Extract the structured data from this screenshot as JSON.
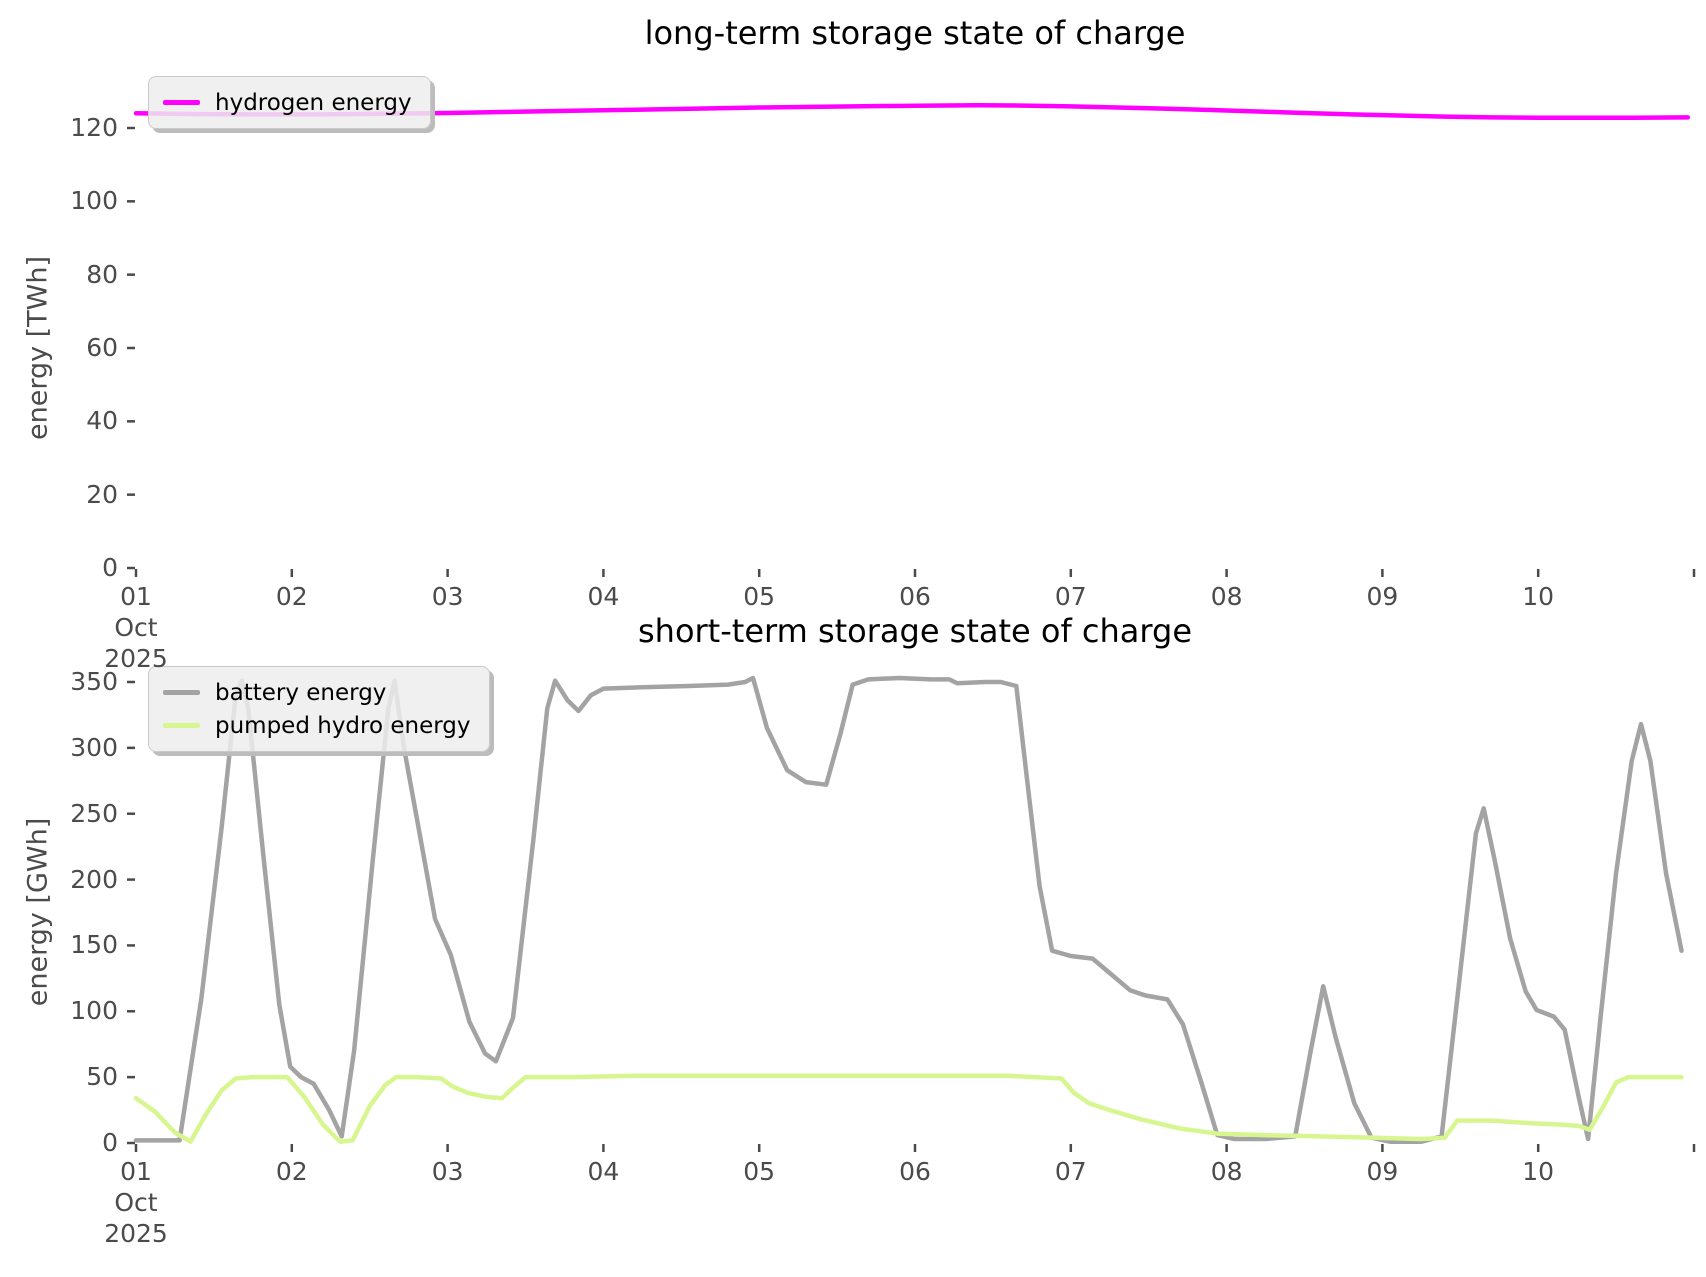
{
  "figure": {
    "background": "#ffffff",
    "tick_color": "#4b4b4b",
    "title_color": "#000000"
  },
  "x_axis": {
    "unit": "day of October 2025",
    "tick_days": [
      1,
      2,
      3,
      4,
      5,
      6,
      7,
      8,
      9,
      10,
      11
    ],
    "tick_labels": [
      "01",
      "02",
      "03",
      "04",
      "05",
      "06",
      "07",
      "08",
      "09",
      "10",
      ""
    ],
    "first_tick_sublabels": [
      "Oct",
      "2025"
    ]
  },
  "chart_data": [
    {
      "type": "line",
      "title": "long-term storage state of charge",
      "ylabel": "energy [TWh]",
      "xlabel": "",
      "grid": false,
      "legend_position": "upper left",
      "ylim": [
        0,
        133
      ],
      "yticks": [
        0,
        20,
        40,
        60,
        80,
        100,
        120
      ],
      "x_range_days": [
        1,
        11
      ],
      "series": [
        {
          "name": "hydrogen energy",
          "color": "#ff00ff",
          "x": [
            1.0,
            1.4,
            1.8,
            2.2,
            2.6,
            3.0,
            3.4,
            3.8,
            4.2,
            4.6,
            5.0,
            5.4,
            5.8,
            6.1,
            6.4,
            6.7,
            7.0,
            7.3,
            7.6,
            7.9,
            8.2,
            8.5,
            8.8,
            9.1,
            9.4,
            9.7,
            10.0,
            10.3,
            10.6,
            10.96
          ],
          "y": [
            124.0,
            123.8,
            123.7,
            123.7,
            123.9,
            124.1,
            124.4,
            124.7,
            125.0,
            125.3,
            125.6,
            125.8,
            126.0,
            126.1,
            126.2,
            126.1,
            125.9,
            125.6,
            125.3,
            124.9,
            124.5,
            124.1,
            123.7,
            123.4,
            123.1,
            122.9,
            122.8,
            122.8,
            122.8,
            122.9
          ]
        }
      ]
    },
    {
      "type": "line",
      "title": "short-term storage state of charge",
      "ylabel": "energy [GWh]",
      "xlabel": "",
      "grid": false,
      "legend_position": "upper left",
      "ylim": [
        0,
        365
      ],
      "yticks": [
        0,
        50,
        100,
        150,
        200,
        250,
        300,
        350
      ],
      "x_range_days": [
        1,
        11
      ],
      "series": [
        {
          "name": "battery energy",
          "color": "#a3a3a3",
          "x": [
            1.0,
            1.28,
            1.42,
            1.55,
            1.64,
            1.68,
            1.72,
            1.82,
            1.92,
            1.99,
            2.06,
            2.14,
            2.24,
            2.32,
            2.4,
            2.52,
            2.62,
            2.66,
            2.72,
            2.82,
            2.92,
            3.02,
            3.14,
            3.24,
            3.31,
            3.42,
            3.55,
            3.64,
            3.69,
            3.77,
            3.84,
            3.92,
            4.0,
            4.25,
            4.55,
            4.8,
            4.91,
            4.96,
            5.05,
            5.18,
            5.3,
            5.43,
            5.52,
            5.6,
            5.7,
            5.9,
            6.1,
            6.22,
            6.27,
            6.45,
            6.55,
            6.65,
            6.72,
            6.8,
            6.88,
            7.0,
            7.14,
            7.26,
            7.38,
            7.48,
            7.62,
            7.72,
            7.84,
            7.94,
            8.05,
            8.25,
            8.44,
            8.54,
            8.62,
            8.7,
            8.82,
            8.93,
            9.05,
            9.25,
            9.38,
            9.5,
            9.6,
            9.65,
            9.72,
            9.82,
            9.92,
            9.99,
            10.1,
            10.17,
            10.26,
            10.32,
            10.4,
            10.5,
            10.6,
            10.66,
            10.72,
            10.82,
            10.92
          ],
          "y": [
            2,
            2,
            110,
            240,
            340,
            351,
            330,
            215,
            105,
            58,
            50,
            45,
            25,
            5,
            70,
            215,
            330,
            351,
            300,
            235,
            170,
            143,
            92,
            68,
            62,
            95,
            230,
            330,
            351,
            336,
            328,
            340,
            345,
            346,
            347,
            348,
            350,
            353,
            315,
            283,
            274,
            272,
            310,
            348,
            352,
            353,
            352,
            352,
            349,
            350,
            350,
            347,
            275,
            195,
            146,
            142,
            140,
            128,
            116,
            112,
            109,
            90,
            45,
            6,
            3,
            3,
            5,
            70,
            119,
            80,
            30,
            4,
            1,
            1,
            5,
            130,
            235,
            254,
            215,
            155,
            115,
            101,
            96,
            86,
            35,
            3,
            95,
            205,
            290,
            318,
            290,
            205,
            146
          ]
        },
        {
          "name": "pumped hydro energy",
          "color": "#d8f68f",
          "x": [
            1.0,
            1.12,
            1.25,
            1.35,
            1.45,
            1.55,
            1.64,
            1.75,
            1.97,
            2.08,
            2.2,
            2.31,
            2.39,
            2.5,
            2.6,
            2.67,
            2.8,
            2.96,
            3.03,
            3.13,
            3.25,
            3.35,
            3.42,
            3.5,
            3.8,
            4.2,
            4.8,
            5.4,
            6.0,
            6.6,
            6.94,
            7.02,
            7.12,
            7.25,
            7.45,
            7.7,
            7.95,
            8.25,
            8.6,
            8.95,
            9.25,
            9.4,
            9.48,
            9.7,
            9.95,
            10.15,
            10.26,
            10.33,
            10.42,
            10.5,
            10.58,
            10.75,
            10.92
          ],
          "y": [
            34,
            24,
            8,
            1,
            22,
            40,
            49,
            50,
            50,
            35,
            14,
            1,
            2,
            28,
            44,
            50,
            50,
            49,
            43,
            38,
            35,
            34,
            42,
            50,
            50,
            51,
            51,
            51,
            51,
            51,
            49,
            38,
            30,
            25,
            18,
            11,
            7,
            6,
            5,
            4,
            3,
            4,
            17,
            17,
            15,
            14,
            13,
            10,
            28,
            46,
            50,
            50,
            50
          ]
        }
      ]
    }
  ]
}
